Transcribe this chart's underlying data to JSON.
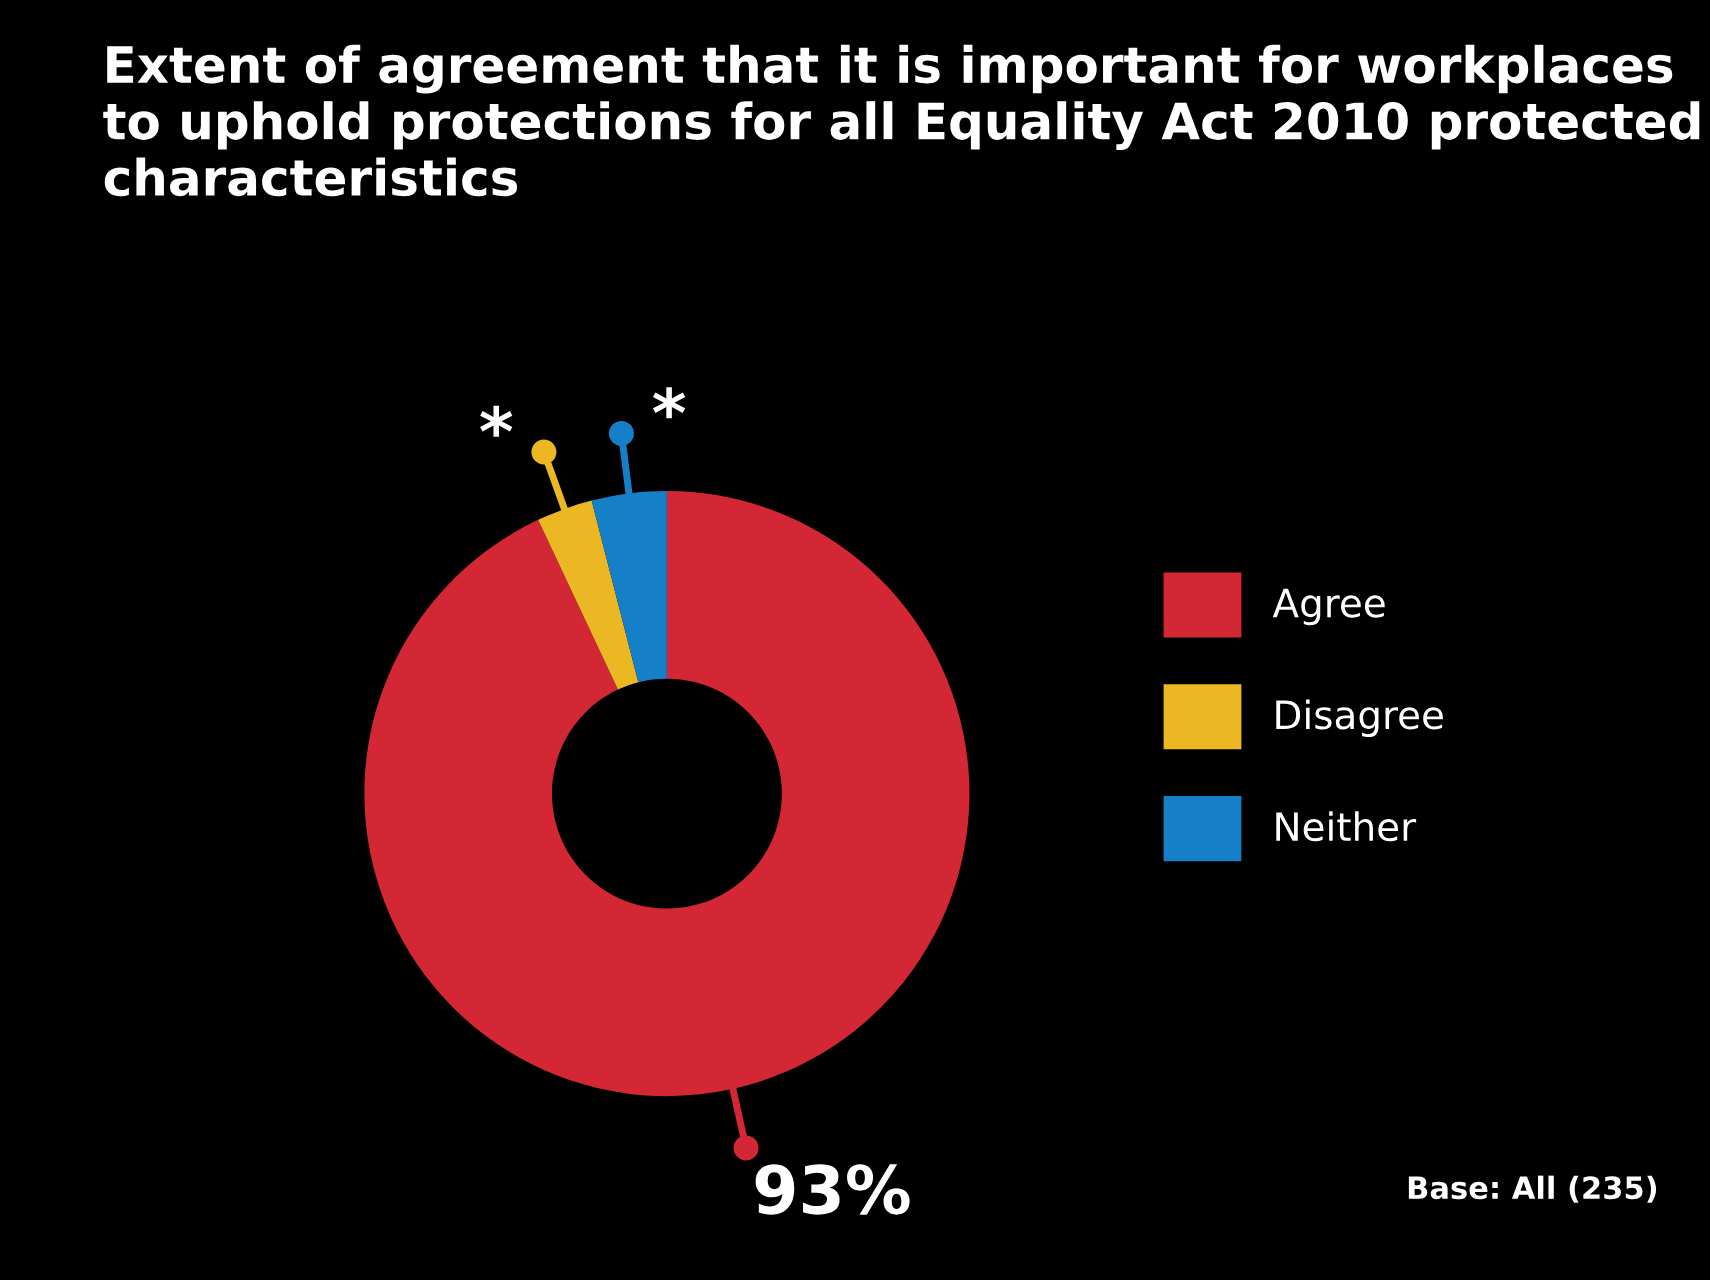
{
  "chart_data": {
    "type": "donut",
    "title": "Extent of agreement that it is important for workplaces to uphold protections for all Equality Act 2010 protected characteristics",
    "categories": [
      "Agree",
      "Disagree",
      "Neither"
    ],
    "values": [
      93,
      3,
      4
    ],
    "colors": [
      "#d42735",
      "#ebb823",
      "#1580c8"
    ],
    "value_labels": [
      "93%",
      "*",
      "*"
    ],
    "legend": "right",
    "annotations": [
      "Base: All (235)"
    ]
  }
}
